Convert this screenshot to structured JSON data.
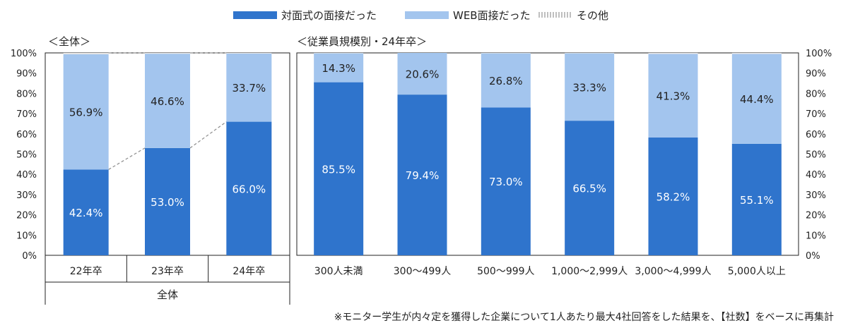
{
  "legend": [
    {
      "label": "対面式の面接だった",
      "color": "#2f74cc",
      "style": "solid"
    },
    {
      "label": "WEB面接だった",
      "color": "#a3c5ee",
      "style": "solid"
    },
    {
      "label": "その他",
      "color": "#bfbfbf",
      "style": "dotted"
    }
  ],
  "left_panel_label": "＜全体＞",
  "right_panel_label": "＜従業員規模別・24年卒＞",
  "group_label": "全体",
  "footnote": "※モニター学生が内々定を獲得した企業について1人あたり最大4社回答をした結果を、【社数】をベースに再集計",
  "chart_data": [
    {
      "type": "bar",
      "stacked": true,
      "title": "＜全体＞",
      "categories": [
        "22年卒",
        "23年卒",
        "24年卒"
      ],
      "series": [
        {
          "name": "対面式の面接だった",
          "values": [
            42.4,
            53.0,
            66.0
          ],
          "color": "#2f74cc"
        },
        {
          "name": "WEB面接だった",
          "values": [
            56.9,
            46.6,
            33.7
          ],
          "color": "#a3c5ee"
        },
        {
          "name": "その他",
          "values": [
            0.7,
            0.4,
            0.3
          ],
          "color": "#bfbfbf"
        }
      ],
      "labels_face": [
        "42.4%",
        "53.0%",
        "66.0%"
      ],
      "labels_web": [
        "56.9%",
        "46.6%",
        "33.7%"
      ],
      "y_ticks": [
        "0%",
        "10%",
        "20%",
        "30%",
        "40%",
        "50%",
        "60%",
        "70%",
        "80%",
        "90%",
        "100%"
      ],
      "ylim": [
        0,
        100
      ],
      "connector_lines": true
    },
    {
      "type": "bar",
      "stacked": true,
      "title": "＜従業員規模別・24年卒＞",
      "categories": [
        "300人未満",
        "300～499人",
        "500～999人",
        "1,000～2,999人",
        "3,000～4,999人",
        "5,000人以上"
      ],
      "series": [
        {
          "name": "対面式の面接だった",
          "values": [
            85.5,
            79.4,
            73.0,
            66.5,
            58.2,
            55.1
          ],
          "color": "#2f74cc"
        },
        {
          "name": "WEB面接だった",
          "values": [
            14.3,
            20.6,
            26.8,
            33.3,
            41.3,
            44.4
          ],
          "color": "#a3c5ee"
        },
        {
          "name": "その他",
          "values": [
            0.2,
            0.0,
            0.2,
            0.2,
            0.5,
            0.5
          ],
          "color": "#bfbfbf"
        }
      ],
      "labels_face": [
        "85.5%",
        "79.4%",
        "73.0%",
        "66.5%",
        "58.2%",
        "55.1%"
      ],
      "labels_web": [
        "14.3%",
        "20.6%",
        "26.8%",
        "33.3%",
        "41.3%",
        "44.4%"
      ],
      "y_ticks": [
        "0%",
        "10%",
        "20%",
        "30%",
        "40%",
        "50%",
        "60%",
        "70%",
        "80%",
        "90%",
        "100%"
      ],
      "ylim": [
        0,
        100
      ]
    }
  ]
}
